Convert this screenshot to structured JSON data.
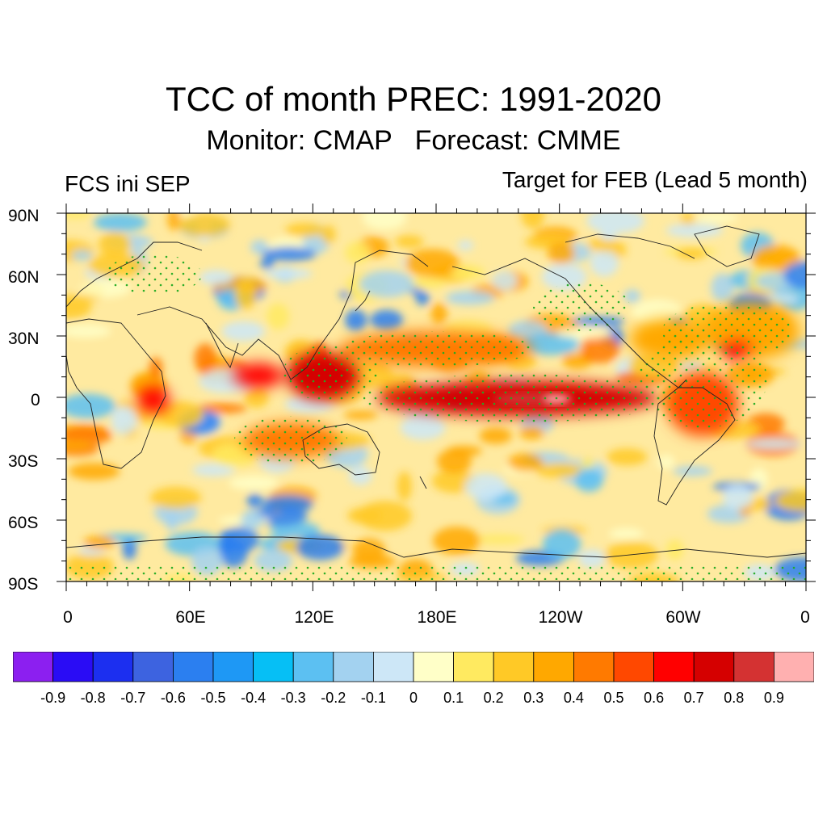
{
  "title": "TCC of month PREC: 1991-2020",
  "subtitle": "Monitor: CMAP   Forecast: CMME",
  "left_label": "FCS ini SEP",
  "right_label": "Target for FEB (Lead 5 month)",
  "map": {
    "lat_ticks": [
      "90N",
      "60N",
      "30N",
      "0",
      "30S",
      "60S",
      "90S"
    ],
    "lon_ticks": [
      "0",
      "60E",
      "120E",
      "180E",
      "120W",
      "60W",
      "0"
    ],
    "features": [
      "coastlines",
      "stippling-significance"
    ],
    "stipple_color": "#22aa22"
  },
  "colorbar": {
    "colors": [
      "#8c1ff0",
      "#2a0cf5",
      "#1c2ff0",
      "#3d63e0",
      "#2b7ff0",
      "#1e98f5",
      "#06bff5",
      "#5cc0f2",
      "#a3d2f0",
      "#cde7f7",
      "#ffffc8",
      "#ffea60",
      "#ffc926",
      "#ffa800",
      "#ff7a00",
      "#ff4800",
      "#ff0000",
      "#d50000",
      "#d43232",
      "#ffb0b0"
    ],
    "labels": [
      "-0.9",
      "-0.8",
      "-0.7",
      "-0.6",
      "-0.5",
      "-0.4",
      "-0.3",
      "-0.2",
      "-0.1",
      "0",
      "0.1",
      "0.2",
      "0.3",
      "0.4",
      "0.5",
      "0.6",
      "0.7",
      "0.8",
      "0.9"
    ]
  }
}
